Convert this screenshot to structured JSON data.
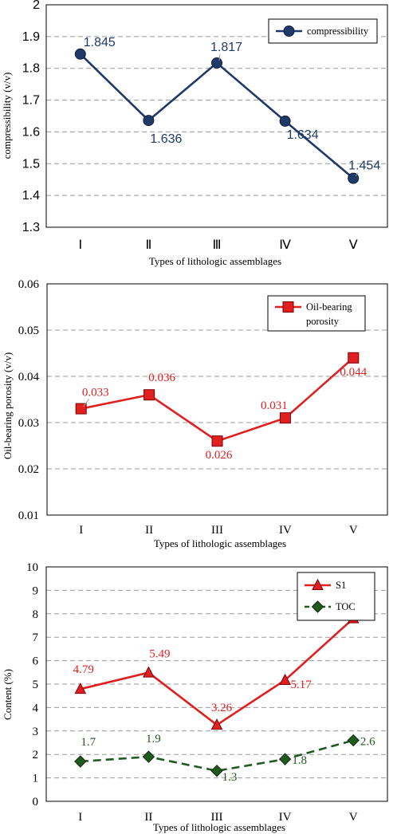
{
  "chart_data": [
    {
      "type": "line",
      "categories": [
        "Ⅰ",
        "Ⅱ",
        "Ⅲ",
        "Ⅳ",
        "Ⅴ"
      ],
      "series": [
        {
          "name": "compressibility",
          "values": [
            1.845,
            1.636,
            1.817,
            1.634,
            1.454
          ],
          "color": "#1f3a68",
          "marker": "circle",
          "dash": "solid"
        }
      ],
      "data_labels": [
        "1.845",
        "1.636",
        "1.817",
        "1.634",
        "1.454"
      ],
      "xlabel": "Types of lithologic assemblages",
      "ylabel": "compressibility (v/v)",
      "ylim": [
        1.3,
        2.0
      ],
      "yticks": [
        "1.3",
        "1.4",
        "1.5",
        "1.6",
        "1.7",
        "1.8",
        "1.9",
        "2"
      ],
      "grid": true,
      "legend_position": "top-right"
    },
    {
      "type": "line",
      "categories": [
        "I",
        "II",
        "III",
        "IV",
        "V"
      ],
      "series": [
        {
          "name": "Oil-bearing porosity",
          "values": [
            0.033,
            0.036,
            0.026,
            0.031,
            0.044
          ],
          "color": "#e02020",
          "marker": "square",
          "dash": "solid"
        }
      ],
      "legend_lines": [
        "Oil-bearing",
        "porosity"
      ],
      "data_labels": [
        "0.033",
        "0.036",
        "0.026",
        "0.031",
        "0.044"
      ],
      "xlabel": "Types of lithologic assemblages",
      "ylabel": "Oil-bearing porosity (v/v)",
      "ylim": [
        0.01,
        0.06
      ],
      "yticks": [
        "0.01",
        "0.02",
        "0.03",
        "0.04",
        "0.05",
        "0.06"
      ],
      "grid": true,
      "legend_position": "top-right"
    },
    {
      "type": "line",
      "categories": [
        "I",
        "II",
        "III",
        "IV",
        "V"
      ],
      "series": [
        {
          "name": "S1",
          "values": [
            4.79,
            5.49,
            3.26,
            5.17,
            7.8
          ],
          "color": "#e02020",
          "marker": "triangle",
          "dash": "solid"
        },
        {
          "name": "TOC",
          "values": [
            1.7,
            1.9,
            1.3,
            1.8,
            2.6
          ],
          "color": "#1f5a1f",
          "marker": "diamond",
          "dash": "dashed"
        }
      ],
      "data_labels": {
        "S1": [
          "4.79",
          "5.49",
          "3.26",
          "5.17",
          ""
        ],
        "TOC": [
          "1.7",
          "1.9",
          "1.3",
          "1.8",
          "2.6"
        ]
      },
      "xlabel": "Types of lithologic assemblages",
      "ylabel": "Content (%)",
      "ylim": [
        0,
        10
      ],
      "yticks": [
        "0",
        "1",
        "2",
        "3",
        "4",
        "5",
        "6",
        "7",
        "8",
        "9",
        "10"
      ],
      "grid": true,
      "legend_position": "top-right"
    }
  ]
}
